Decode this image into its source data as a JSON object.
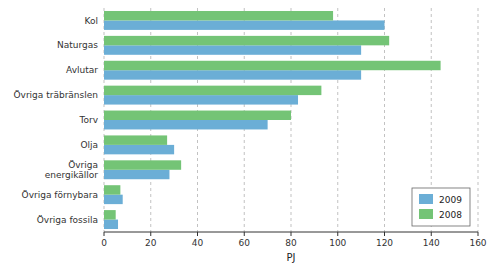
{
  "chart_data": {
    "type": "bar",
    "orientation": "horizontal",
    "categories": [
      "Kol",
      "Naturgas",
      "Avlutar",
      "Övriga träbränslen",
      "Torv",
      "Olja",
      "Övriga\nenergikällor",
      "Övriga förnybara",
      "Övriga fossila"
    ],
    "series": [
      {
        "name": "2009",
        "color": "#6BAED6",
        "values": [
          120,
          110,
          110,
          83,
          70,
          30,
          28,
          8,
          6
        ]
      },
      {
        "name": "2008",
        "color": "#74C476",
        "values": [
          98,
          122,
          144,
          93,
          80,
          27,
          33,
          7,
          5
        ]
      }
    ],
    "xlabel": "PJ",
    "xlim": [
      0,
      160
    ],
    "xticks": [
      0,
      20,
      40,
      60,
      80,
      100,
      120,
      140,
      160
    ],
    "grid": true,
    "legend": "lower right"
  }
}
